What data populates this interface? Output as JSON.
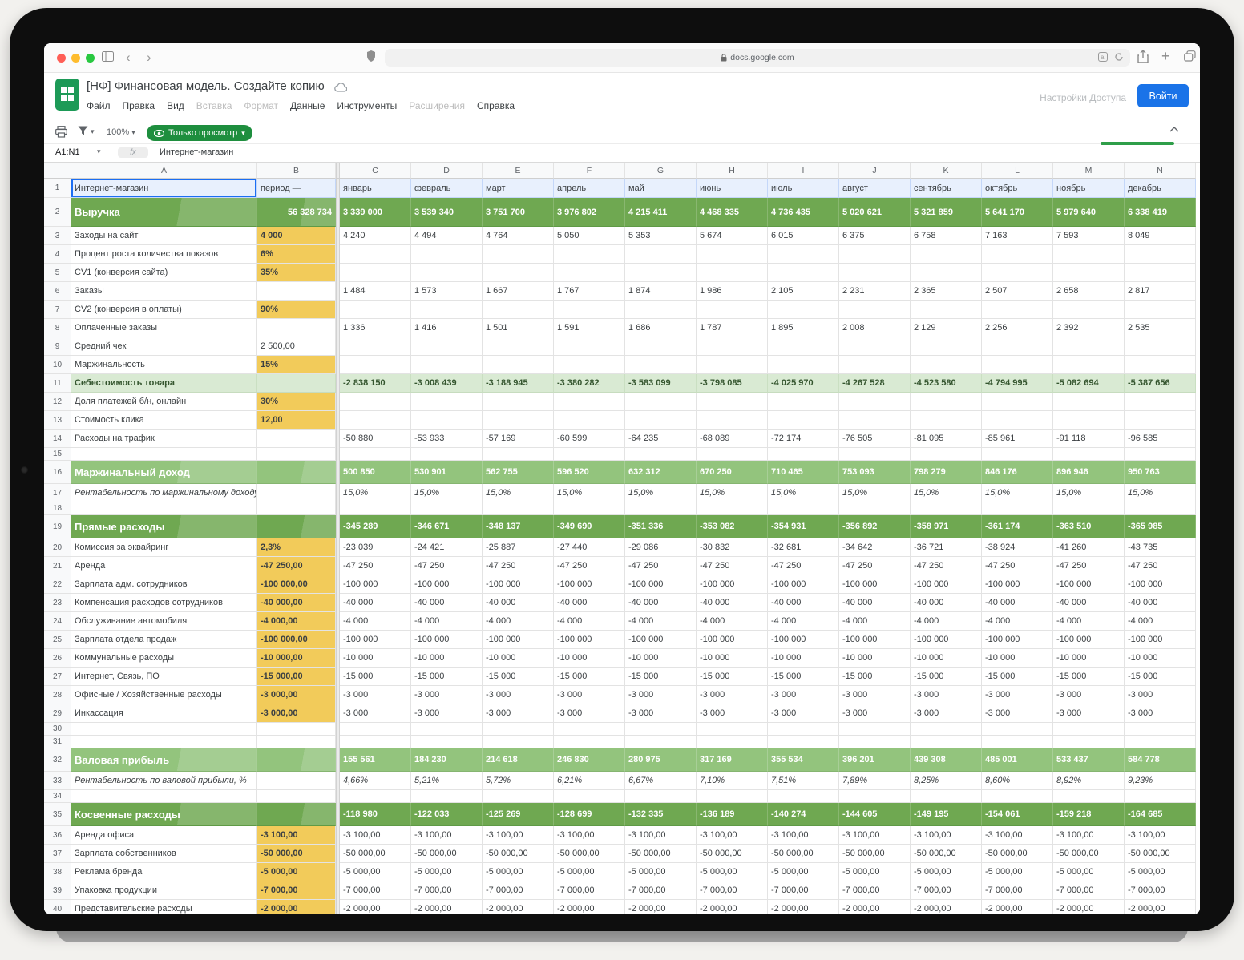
{
  "browser": {
    "url": "docs.google.com"
  },
  "header": {
    "title": "[НФ] Финансовая модель. Создайте копию",
    "menu": [
      {
        "label": "Файл",
        "enabled": true
      },
      {
        "label": "Правка",
        "enabled": true
      },
      {
        "label": "Вид",
        "enabled": true
      },
      {
        "label": "Вставка",
        "enabled": false
      },
      {
        "label": "Формат",
        "enabled": false
      },
      {
        "label": "Данные",
        "enabled": true
      },
      {
        "label": "Инструменты",
        "enabled": true
      },
      {
        "label": "Расширения",
        "enabled": false
      },
      {
        "label": "Справка",
        "enabled": true
      }
    ],
    "access_settings": "Настройки Доступа",
    "sign_in": "Войти"
  },
  "toolbar": {
    "zoom": "100%",
    "view_only": "Только просмотр"
  },
  "formula_bar": {
    "name_box": "A1:N1",
    "fx": "fx",
    "content": "Интернет-магазин"
  },
  "colors": {
    "band_dark_green": "#6fa851",
    "band_light_green": "#93c47d",
    "pale_green": "#d9ead3",
    "highlight_yellow": "#f2cb5a",
    "accent_blue": "#1a73e8",
    "view_pill_green": "#1e8e3e"
  },
  "sheet": {
    "col_letters": [
      "A",
      "B",
      "C",
      "D",
      "E",
      "F",
      "G",
      "H",
      "I",
      "J",
      "K",
      "L",
      "M",
      "N"
    ],
    "row1": {
      "a": "Интернет-магазин",
      "b": "период —",
      "months": [
        "январь",
        "февраль",
        "март",
        "апрель",
        "май",
        "июнь",
        "июль",
        "август",
        "сентябрь",
        "октябрь",
        "ноябрь",
        "декабрь"
      ]
    },
    "rows": [
      {
        "n": 2,
        "type": "revenue",
        "label": "Выручка",
        "b": "56 328 734",
        "vals": [
          "3 339 000",
          "3 539 340",
          "3 751 700",
          "3 976 802",
          "4 215 411",
          "4 468 335",
          "4 736 435",
          "5 020 621",
          "5 321 859",
          "5 641 170",
          "5 979 640",
          "6 338 419"
        ]
      },
      {
        "n": 3,
        "label": "Заходы на сайт",
        "b": "4 000",
        "b_fill": "yellow",
        "vals": [
          "4 240",
          "4 494",
          "4 764",
          "5 050",
          "5 353",
          "5 674",
          "6 015",
          "6 375",
          "6 758",
          "7 163",
          "7 593",
          "8 049"
        ]
      },
      {
        "n": 4,
        "label": "Процент роста количества показов",
        "b": "6%",
        "b_fill": "yellow"
      },
      {
        "n": 5,
        "label": "CV1 (конверсия сайта)",
        "b": "35%",
        "b_fill": "yellow"
      },
      {
        "n": 6,
        "label": "Заказы",
        "vals": [
          "1 484",
          "1 573",
          "1 667",
          "1 767",
          "1 874",
          "1 986",
          "2 105",
          "2 231",
          "2 365",
          "2 507",
          "2 658",
          "2 817"
        ]
      },
      {
        "n": 7,
        "label": "CV2 (конверсия в оплаты)",
        "b": "90%",
        "b_fill": "yellow"
      },
      {
        "n": 8,
        "label": "Оплаченные заказы",
        "vals": [
          "1 336",
          "1 416",
          "1 501",
          "1 591",
          "1 686",
          "1 787",
          "1 895",
          "2 008",
          "2 129",
          "2 256",
          "2 392",
          "2 535"
        ]
      },
      {
        "n": 9,
        "label": "Средний чек",
        "b": "2 500,00"
      },
      {
        "n": 10,
        "label": "Маржинальность",
        "b": "15%",
        "b_fill": "yellow"
      },
      {
        "n": 11,
        "type": "pale",
        "label": "Себестоимость товара",
        "vals": [
          "-2 838 150",
          "-3 008 439",
          "-3 188 945",
          "-3 380 282",
          "-3 583 099",
          "-3 798 085",
          "-4 025 970",
          "-4 267 528",
          "-4 523 580",
          "-4 794 995",
          "-5 082 694",
          "-5 387 656"
        ]
      },
      {
        "n": 12,
        "label": "Доля платежей б/н, онлайн",
        "b": "30%",
        "b_fill": "yellow"
      },
      {
        "n": 13,
        "label": "Стоимость клика",
        "b": "12,00",
        "b_fill": "yellow"
      },
      {
        "n": 14,
        "label": "Расходы на трафик",
        "vals": [
          "-50 880",
          "-53 933",
          "-57 169",
          "-60 599",
          "-64 235",
          "-68 089",
          "-72 174",
          "-76 505",
          "-81 095",
          "-85 961",
          "-91 118",
          "-96 585"
        ]
      },
      {
        "n": 15,
        "type": "empty"
      },
      {
        "n": 16,
        "type": "band_light",
        "label": "Маржинальный доход",
        "vals": [
          "500 850",
          "530 901",
          "562 755",
          "596 520",
          "632 312",
          "670 250",
          "710 465",
          "753 093",
          "798 279",
          "846 176",
          "896 946",
          "950 763"
        ]
      },
      {
        "n": 17,
        "type": "pct",
        "label": "Рентабельность по маржинальному доходу, %",
        "val_all": "15,0%"
      },
      {
        "n": 18,
        "type": "empty"
      },
      {
        "n": 19,
        "type": "band_dark",
        "label": "Прямые расходы",
        "vals": [
          "-345 289",
          "-346 671",
          "-348 137",
          "-349 690",
          "-351 336",
          "-353 082",
          "-354 931",
          "-356 892",
          "-358 971",
          "-361 174",
          "-363 510",
          "-365 985"
        ]
      },
      {
        "n": 20,
        "label": "Комиссия за эквайринг",
        "b": "2,3%",
        "b_fill": "yellow",
        "vals": [
          "-23 039",
          "-24 421",
          "-25 887",
          "-27 440",
          "-29 086",
          "-30 832",
          "-32 681",
          "-34 642",
          "-36 721",
          "-38 924",
          "-41 260",
          "-43 735"
        ]
      },
      {
        "n": 21,
        "label": "Аренда",
        "b": "-47 250,00",
        "b_fill": "yellow",
        "val_all": "-47 250"
      },
      {
        "n": 22,
        "label": "Зарплата адм. сотрудников",
        "b": "-100 000,00",
        "b_fill": "yellow",
        "val_all": "-100 000"
      },
      {
        "n": 23,
        "label": "Компенсация расходов сотрудников",
        "b": "-40 000,00",
        "b_fill": "yellow",
        "val_all": "-40 000"
      },
      {
        "n": 24,
        "label": "Обслуживание автомобиля",
        "b": "-4 000,00",
        "b_fill": "yellow",
        "val_all": "-4 000"
      },
      {
        "n": 25,
        "label": "Зарплата отдела продаж",
        "b": "-100 000,00",
        "b_fill": "yellow",
        "val_all": "-100 000"
      },
      {
        "n": 26,
        "label": "Коммунальные расходы",
        "b": "-10 000,00",
        "b_fill": "yellow",
        "val_all": "-10 000"
      },
      {
        "n": 27,
        "label": "Интернет, Связь, ПО",
        "b": "-15 000,00",
        "b_fill": "yellow",
        "val_all": "-15 000"
      },
      {
        "n": 28,
        "label": "Офисные / Хозяйственные расходы",
        "b": "-3 000,00",
        "b_fill": "yellow",
        "val_all": "-3 000"
      },
      {
        "n": 29,
        "label": "Инкассация",
        "b": "-3 000,00",
        "b_fill": "yellow",
        "val_all": "-3 000"
      },
      {
        "n": 30,
        "type": "empty"
      },
      {
        "n": 31,
        "type": "empty"
      },
      {
        "n": 32,
        "type": "band_light",
        "label": "Валовая прибыль",
        "vals": [
          "155 561",
          "184 230",
          "214 618",
          "246 830",
          "280 975",
          "317 169",
          "355 534",
          "396 201",
          "439 308",
          "485 001",
          "533 437",
          "584 778"
        ]
      },
      {
        "n": 33,
        "type": "pct",
        "label": "Рентабельность по валовой прибыли, %",
        "vals": [
          "4,66%",
          "5,21%",
          "5,72%",
          "6,21%",
          "6,67%",
          "7,10%",
          "7,51%",
          "7,89%",
          "8,25%",
          "8,60%",
          "8,92%",
          "9,23%"
        ]
      },
      {
        "n": 34,
        "type": "empty"
      },
      {
        "n": 35,
        "type": "band_dark",
        "label": "Косвенные расходы",
        "vals": [
          "-118 980",
          "-122 033",
          "-125 269",
          "-128 699",
          "-132 335",
          "-136 189",
          "-140 274",
          "-144 605",
          "-149 195",
          "-154 061",
          "-159 218",
          "-164 685"
        ]
      },
      {
        "n": 36,
        "label": "Аренда офиса",
        "b": "-3 100,00",
        "b_fill": "yellow",
        "val_all": "-3 100,00"
      },
      {
        "n": 37,
        "label": "Зарплата собственников",
        "b": "-50 000,00",
        "b_fill": "yellow",
        "val_all": "-50 000,00"
      },
      {
        "n": 38,
        "label": "Реклама бренда",
        "b": "-5 000,00",
        "b_fill": "yellow",
        "val_all": "-5 000,00"
      },
      {
        "n": 39,
        "label": "Упаковка продукции",
        "b": "-7 000,00",
        "b_fill": "yellow",
        "val_all": "-7 000,00"
      },
      {
        "n": 40,
        "label": "Представительские расходы",
        "b": "-2 000,00",
        "b_fill": "yellow",
        "val_all": "-2 000,00"
      }
    ]
  }
}
